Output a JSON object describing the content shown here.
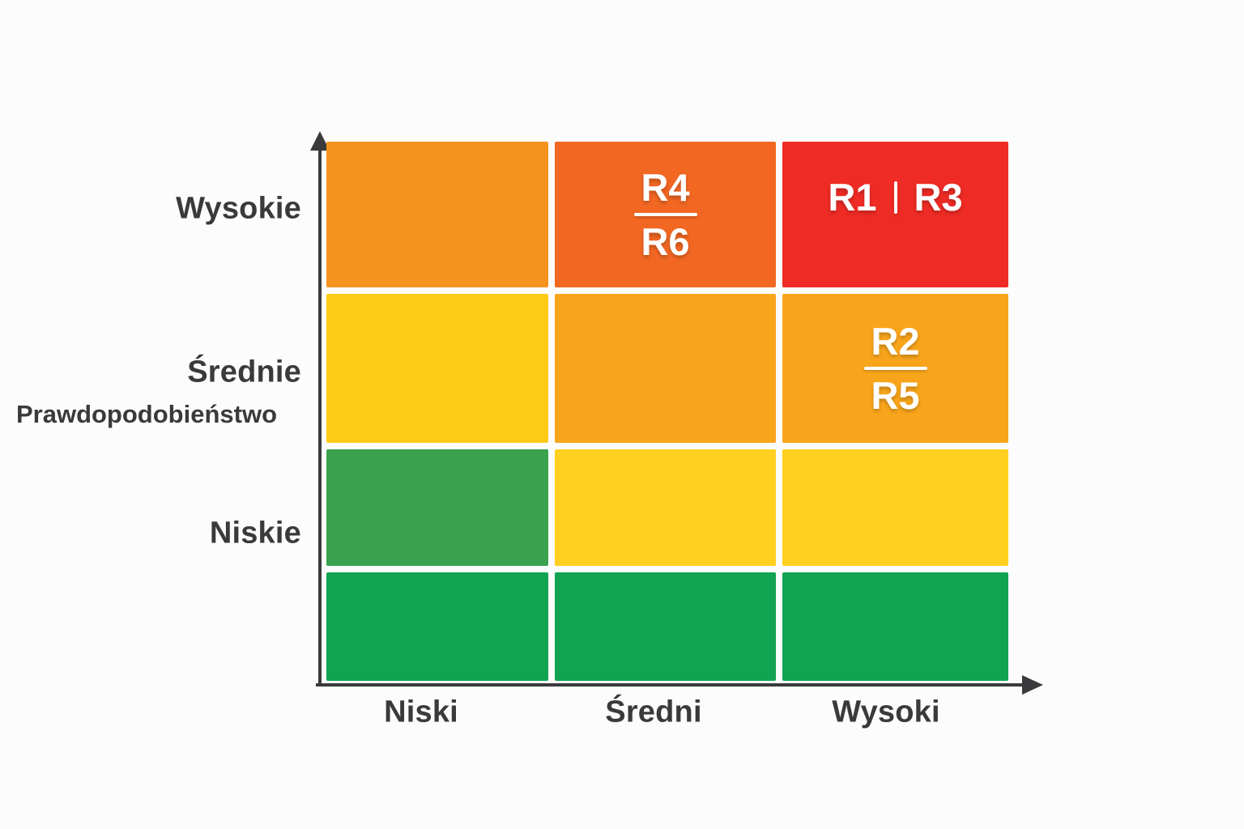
{
  "colors": {
    "background": "#fcfcfc",
    "axis": "#3a3a3c",
    "axis_label_text": "#3a3a3a",
    "cell_label_text": "#ffffff",
    "orange": "#f6921e",
    "dark_orange": "#f26722",
    "red": "#ee2b25",
    "yellow": "#fecb16",
    "amber": "#f9a51b",
    "bright_yellow": "#ffd01f",
    "medium_green": "#3aa24e",
    "dark_green": "#10a351"
  },
  "y_axis": {
    "title": "Prawdopodobieństwo",
    "ticks": [
      "Wysokie",
      "Średnie",
      "Niskie"
    ]
  },
  "x_axis": {
    "ticks": [
      "Niski",
      "Średni",
      "Wysoki"
    ]
  },
  "chart_data": {
    "type": "heatmap",
    "title": "",
    "xlabel": "",
    "ylabel": "Prawdopodobieństwo",
    "x_ticks": [
      "Niski",
      "Średni",
      "Wysoki"
    ],
    "y_ticks": [
      "Wysokie",
      "Średnie",
      "Niskie",
      ""
    ],
    "legend": "none",
    "grid_rows": 4,
    "grid_cols": 3,
    "grid": [
      [
        {
          "color": "#f6921e",
          "labels": [],
          "divider": "none"
        },
        {
          "color": "#f26722",
          "labels": [
            "R4",
            "R6"
          ],
          "divider": "horizontal"
        },
        {
          "color": "#ee2b25",
          "labels": [
            "R1",
            "R3"
          ],
          "divider": "vertical"
        }
      ],
      [
        {
          "color": "#fecb16",
          "labels": [],
          "divider": "none"
        },
        {
          "color": "#f9a51b",
          "labels": [],
          "divider": "none"
        },
        {
          "color": "#f9a51b",
          "labels": [
            "R2",
            "R5"
          ],
          "divider": "horizontal"
        }
      ],
      [
        {
          "color": "#3aa24e",
          "labels": [],
          "divider": "none"
        },
        {
          "color": "#ffd01f",
          "labels": [],
          "divider": "none"
        },
        {
          "color": "#ffd01f",
          "labels": [],
          "divider": "none"
        }
      ],
      [
        {
          "color": "#10a351",
          "labels": [],
          "divider": "none"
        },
        {
          "color": "#10a351",
          "labels": [],
          "divider": "none"
        },
        {
          "color": "#10a351",
          "labels": [],
          "divider": "none"
        }
      ]
    ]
  }
}
